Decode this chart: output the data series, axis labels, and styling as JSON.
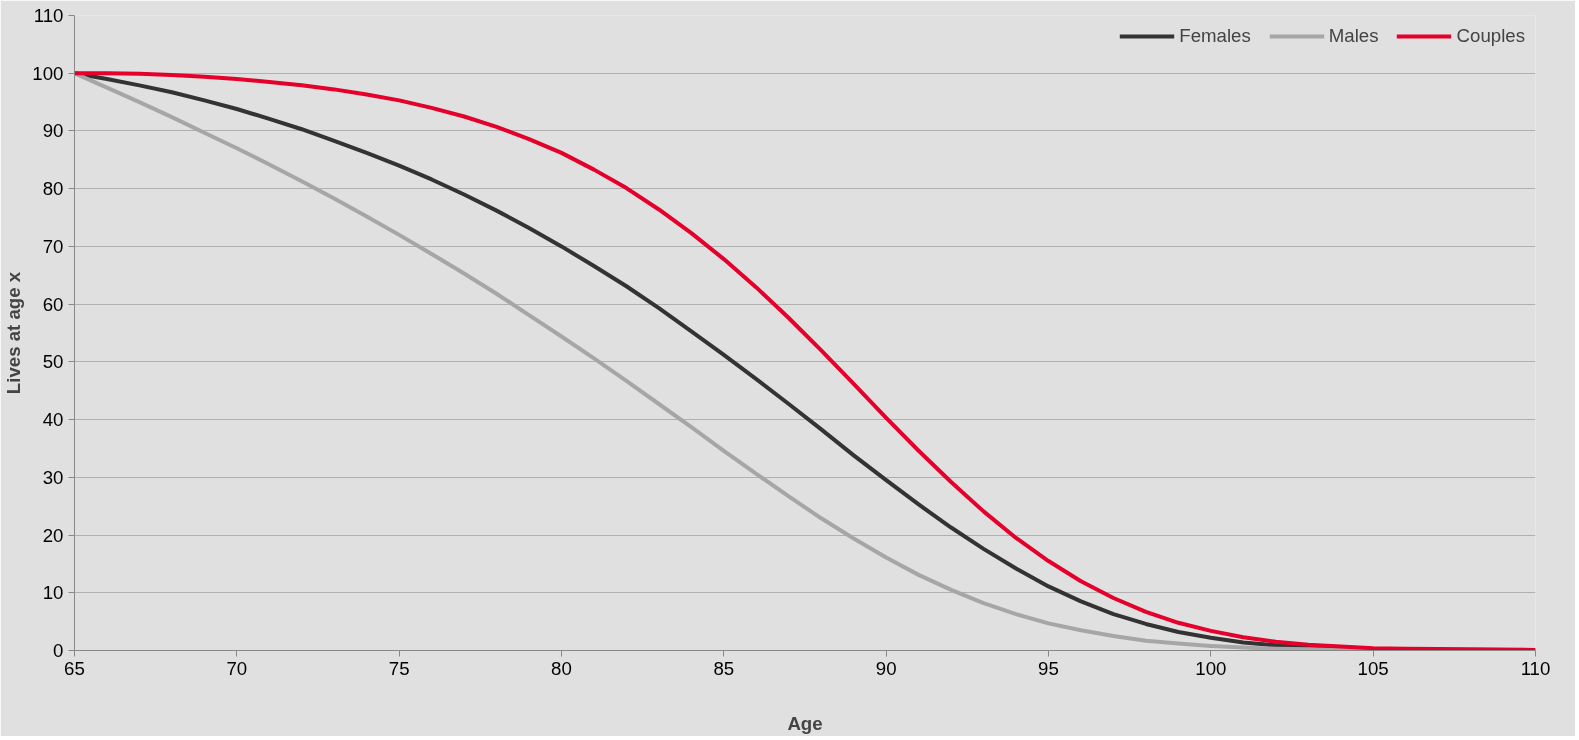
{
  "chart_data": {
    "type": "line",
    "xlabel": "Age",
    "ylabel": "Lives at age x",
    "x": [
      65,
      66,
      67,
      68,
      69,
      70,
      71,
      72,
      73,
      74,
      75,
      76,
      77,
      78,
      79,
      80,
      81,
      82,
      83,
      84,
      85,
      86,
      87,
      88,
      89,
      90,
      91,
      92,
      93,
      94,
      95,
      96,
      97,
      98,
      99,
      100,
      101,
      102,
      103,
      104,
      105,
      106,
      108,
      110
    ],
    "series": [
      {
        "name": "Females",
        "color": "#333333",
        "values": [
          100,
          99,
          97.9,
          96.7,
          95.3,
          93.8,
          92.1,
          90.3,
          88.3,
          86.2,
          84,
          81.6,
          79,
          76.2,
          73.2,
          70,
          66.6,
          63.1,
          59.3,
          55.3,
          51.2,
          47,
          42.7,
          38.3,
          33.8,
          29.5,
          25.3,
          21.3,
          17.6,
          14.2,
          11.1,
          8.5,
          6.3,
          4.6,
          3.2,
          2.2,
          1.4,
          0.9,
          0.5,
          0.3,
          0.2,
          0.1,
          0,
          0
        ]
      },
      {
        "name": "Males",
        "color": "#a6a6a6",
        "values": [
          100,
          97.5,
          95,
          92.4,
          89.7,
          87,
          84.2,
          81.3,
          78.3,
          75.2,
          72,
          68.7,
          65.3,
          61.8,
          58.1,
          54.4,
          50.6,
          46.7,
          42.7,
          38.7,
          34.6,
          30.6,
          26.7,
          22.9,
          19.4,
          16.1,
          13.1,
          10.5,
          8.2,
          6.3,
          4.7,
          3.5,
          2.5,
          1.7,
          1.2,
          0.8,
          0.5,
          0.3,
          0.2,
          0.1,
          0.1,
          0,
          0,
          0
        ]
      },
      {
        "name": "Couples",
        "color": "#e4002b",
        "values": [
          100,
          100,
          99.9,
          99.7,
          99.4,
          99,
          98.5,
          97.9,
          97.2,
          96.3,
          95.3,
          94,
          92.5,
          90.7,
          88.6,
          86.2,
          83.3,
          80.1,
          76.4,
          72.3,
          67.8,
          62.9,
          57.6,
          52,
          46.2,
          40.3,
          34.6,
          29.2,
          24.1,
          19.5,
          15.5,
          12,
          9.1,
          6.7,
          4.8,
          3.4,
          2.3,
          1.5,
          1,
          0.7,
          0.4,
          0.3,
          0.2,
          0.1
        ]
      }
    ],
    "xlim": [
      65,
      110
    ],
    "xticks": [
      65,
      70,
      75,
      80,
      85,
      90,
      95,
      100,
      105,
      110
    ],
    "ylim": [
      0,
      110
    ],
    "yticks": [
      0,
      10,
      20,
      30,
      40,
      50,
      60,
      70,
      80,
      90,
      100,
      110
    ],
    "grid": "y",
    "legend": "top right",
    "marker": "none",
    "line_style": "solid"
  }
}
